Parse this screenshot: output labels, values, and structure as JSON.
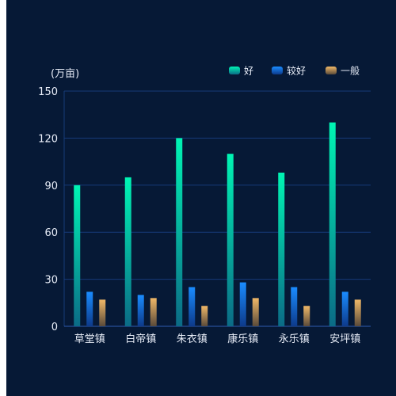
{
  "chart_data": {
    "type": "bar",
    "unit_label": "(万亩)",
    "categories": [
      "草堂镇",
      "白帝镇",
      "朱衣镇",
      "康乐镇",
      "永乐镇",
      "安坪镇"
    ],
    "series": [
      {
        "name": "好",
        "values": [
          90,
          95,
          120,
          110,
          98,
          130
        ],
        "colors": [
          "#00f5b4",
          "#0b6b86"
        ]
      },
      {
        "name": "较好",
        "values": [
          22,
          20,
          25,
          28,
          25,
          22
        ],
        "colors": [
          "#1a8cff",
          "#0d3a8a"
        ]
      },
      {
        "name": "一般",
        "values": [
          17,
          18,
          13,
          18,
          13,
          17
        ],
        "colors": [
          "#f0b868",
          "#5a4a3a"
        ]
      }
    ],
    "ylim": [
      0,
      150
    ],
    "yticks": [
      0,
      30,
      60,
      90,
      120,
      150
    ],
    "grid": true,
    "legend_position": "top-right",
    "colors": {
      "background": "#061936",
      "gridline": "#163a78"
    }
  }
}
